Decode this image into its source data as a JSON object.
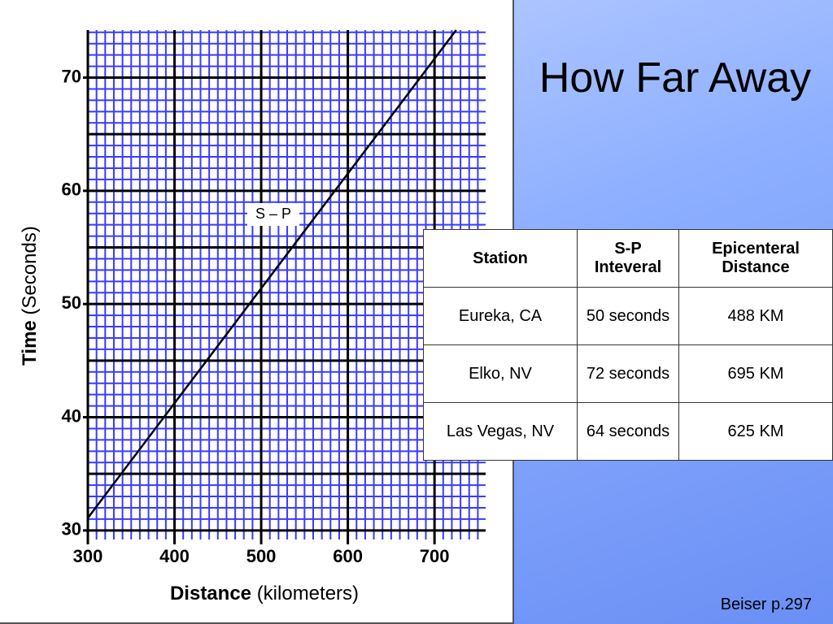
{
  "chart_data": {
    "type": "line",
    "x": [
      300,
      725
    ],
    "values": [
      31.1,
      74.2
    ],
    "color": "#000000",
    "xlim": [
      300,
      759
    ],
    "ylim": [
      29.2,
      74.2
    ],
    "xticks": [
      300,
      400,
      500,
      600,
      700
    ],
    "yticks": [
      30,
      40,
      50,
      60,
      70
    ],
    "minor_grid": {
      "x_step": 10,
      "y_step": 1,
      "color": "#3a3aff"
    },
    "major_grid": {
      "x_step": 100,
      "y_step": 5,
      "color": "#000000"
    },
    "xlabel": {
      "bold": "Distance",
      "normal": "(kilometers)"
    },
    "ylabel": {
      "bold": "Time",
      "normal": "(Seconds)"
    },
    "annotation": "S – P"
  },
  "slide": {
    "title": "How Far Away",
    "footer": "Beiser p.297"
  },
  "table": {
    "header": [
      "Station",
      "S-P Inteveral",
      "Epicenteral Distance"
    ],
    "rows": [
      [
        "Eureka, CA",
        "50 seconds",
        "488 KM"
      ],
      [
        "Elko, NV",
        "72 seconds",
        "695 KM"
      ],
      [
        "Las Vegas, NV",
        "64 seconds",
        "625 KM"
      ]
    ]
  }
}
